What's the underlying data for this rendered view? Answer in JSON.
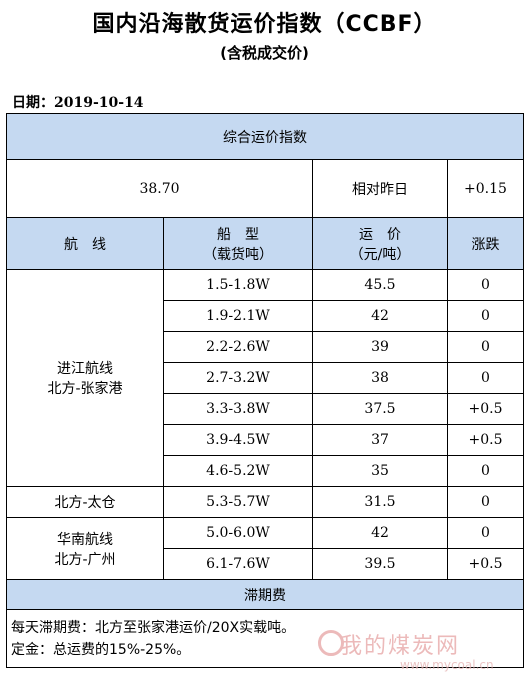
{
  "title": "国内沿海散货运价指数（CCBF）",
  "subtitle": "(含税成交价)",
  "date_label": "日期：2019-10-14",
  "composite": {
    "header": "综合运价指数",
    "value": "38.70",
    "compare_label": "相对昨日",
    "change": "+0.15"
  },
  "columns": {
    "route": "航　线",
    "ship_line1": "船　型",
    "ship_line2": "（载货吨）",
    "price_line1": "运　价",
    "price_line2": "（元/吨）",
    "change": "涨跌"
  },
  "route_groups": [
    {
      "line1": "进江航线",
      "line2": "北方-张家港",
      "rows": [
        {
          "ship": "1.5-1.8W",
          "price": "45.5",
          "change": "0"
        },
        {
          "ship": "1.9-2.1W",
          "price": "42",
          "change": "0"
        },
        {
          "ship": "2.2-2.6W",
          "price": "39",
          "change": "0"
        },
        {
          "ship": "2.7-3.2W",
          "price": "38",
          "change": "0"
        },
        {
          "ship": "3.3-3.8W",
          "price": "37.5",
          "change": "+0.5"
        },
        {
          "ship": "3.9-4.5W",
          "price": "37",
          "change": "+0.5"
        },
        {
          "ship": "4.6-5.2W",
          "price": "35",
          "change": "0"
        }
      ]
    },
    {
      "line1": "北方-太仓",
      "line2": "",
      "rows": [
        {
          "ship": "5.3-5.7W",
          "price": "31.5",
          "change": "0"
        }
      ]
    },
    {
      "line1": "华南航线",
      "line2": "北方-广州",
      "rows": [
        {
          "ship": "5.0-6.0W",
          "price": "42",
          "change": "0"
        },
        {
          "ship": "6.1-7.6W",
          "price": "39.5",
          "change": "+0.5"
        }
      ]
    }
  ],
  "demurrage": {
    "header": "滞期费",
    "line1": "每天滞期费：北方至张家港运价/20X实载吨。",
    "line2": "定金：总运费的15%-25%。"
  },
  "watermark": {
    "text": "我的煤炭网",
    "url": "www.mycoal.cn"
  },
  "colors": {
    "header_fill": "#c5d9f1",
    "border": "#000000",
    "watermark": "#e6a3a3"
  }
}
